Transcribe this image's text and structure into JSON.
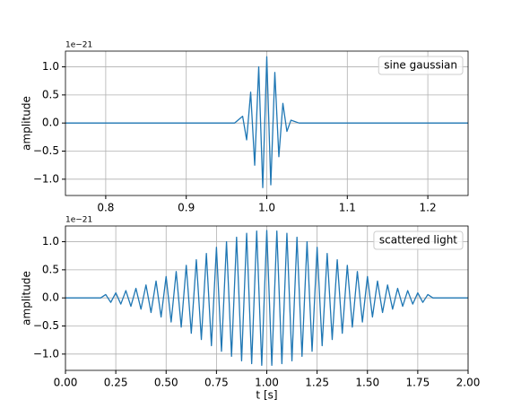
{
  "chart_data": [
    {
      "type": "line",
      "ylabel": "amplitude",
      "offset_text": "1e−21",
      "grid": true,
      "legend": "upper right",
      "xlim": [
        0.75,
        1.25
      ],
      "ylim": [
        -1.29,
        1.28
      ],
      "xticks": [
        0.8,
        0.9,
        {
          "value": 1,
          "label": "1.0"
        },
        1.1,
        1.2
      ],
      "yticks": [
        {
          "value": -1,
          "label": "−1.0"
        },
        {
          "value": -0.5,
          "label": "−0.5"
        },
        {
          "value": 0,
          "label": "0.0"
        },
        0.5,
        {
          "value": 1,
          "label": "1.0"
        }
      ],
      "x": [
        0.75,
        0.96,
        0.97,
        0.975,
        0.98,
        0.985,
        0.99,
        0.995,
        1.0,
        1.005,
        1.01,
        1.015,
        1.02,
        1.025,
        1.03,
        1.04,
        1.25
      ],
      "series": [
        {
          "name": "sine gaussian",
          "color": "#1f77b4",
          "values": [
            0,
            0,
            0.12,
            -0.3,
            0.55,
            -0.75,
            1.0,
            -1.15,
            1.18,
            -1.1,
            0.9,
            -0.6,
            0.35,
            -0.15,
            0.05,
            0,
            0
          ]
        }
      ]
    },
    {
      "type": "line",
      "ylabel": "amplitude",
      "xlabel": "t [s]",
      "offset_text": "1e−21",
      "grid": true,
      "legend": "upper right",
      "xlim": [
        0,
        2
      ],
      "ylim": [
        -1.29,
        1.28
      ],
      "xticks": [
        {
          "value": 0,
          "label": "0.00"
        },
        0.25,
        {
          "value": 0.5,
          "label": "0.50"
        },
        0.75,
        {
          "value": 1,
          "label": "1.00"
        },
        1.25,
        {
          "value": 1.5,
          "label": "1.50"
        },
        1.75,
        {
          "value": 2,
          "label": "2.00"
        }
      ],
      "yticks": [
        {
          "value": -1,
          "label": "−1.0"
        },
        {
          "value": -0.5,
          "label": "−0.5"
        },
        {
          "value": 0,
          "label": "0.0"
        },
        0.5,
        {
          "value": 1,
          "label": "1.0"
        }
      ],
      "x": [
        0,
        0.175,
        0.2,
        0.225,
        0.25,
        0.275,
        0.3,
        0.325,
        0.35,
        0.375,
        0.4,
        0.425,
        0.45,
        0.475,
        0.5,
        0.525,
        0.55,
        0.575,
        0.6,
        0.625,
        0.65,
        0.675,
        0.7,
        0.725,
        0.75,
        0.775,
        0.8,
        0.825,
        0.85,
        0.875,
        0.9,
        0.925,
        0.95,
        0.975,
        1.0,
        1.025,
        1.05,
        1.075,
        1.1,
        1.125,
        1.15,
        1.175,
        1.2,
        1.225,
        1.25,
        1.275,
        1.3,
        1.325,
        1.35,
        1.375,
        1.4,
        1.425,
        1.45,
        1.475,
        1.5,
        1.525,
        1.55,
        1.575,
        1.6,
        1.625,
        1.65,
        1.675,
        1.7,
        1.725,
        1.75,
        1.775,
        1.8,
        1.825,
        2.0
      ],
      "series": [
        {
          "name": "scattered light",
          "color": "#1f77b4",
          "values": [
            0,
            0,
            0.06,
            -0.08,
            0.09,
            -0.11,
            0.13,
            -0.15,
            0.17,
            -0.2,
            0.23,
            -0.26,
            0.3,
            -0.34,
            0.38,
            -0.43,
            0.47,
            -0.52,
            0.58,
            -0.63,
            0.68,
            -0.74,
            0.79,
            -0.85,
            0.9,
            -0.95,
            1.0,
            -1.04,
            1.08,
            -1.12,
            1.15,
            -1.17,
            1.19,
            -1.2,
            1.2,
            -1.2,
            1.19,
            -1.17,
            1.15,
            -1.12,
            1.08,
            -1.04,
            1.0,
            -0.95,
            0.9,
            -0.85,
            0.79,
            -0.74,
            0.68,
            -0.63,
            0.58,
            -0.52,
            0.47,
            -0.43,
            0.38,
            -0.34,
            0.3,
            -0.26,
            0.23,
            -0.2,
            0.17,
            -0.15,
            0.13,
            -0.11,
            0.09,
            -0.08,
            0.06,
            0,
            0
          ]
        }
      ]
    }
  ]
}
